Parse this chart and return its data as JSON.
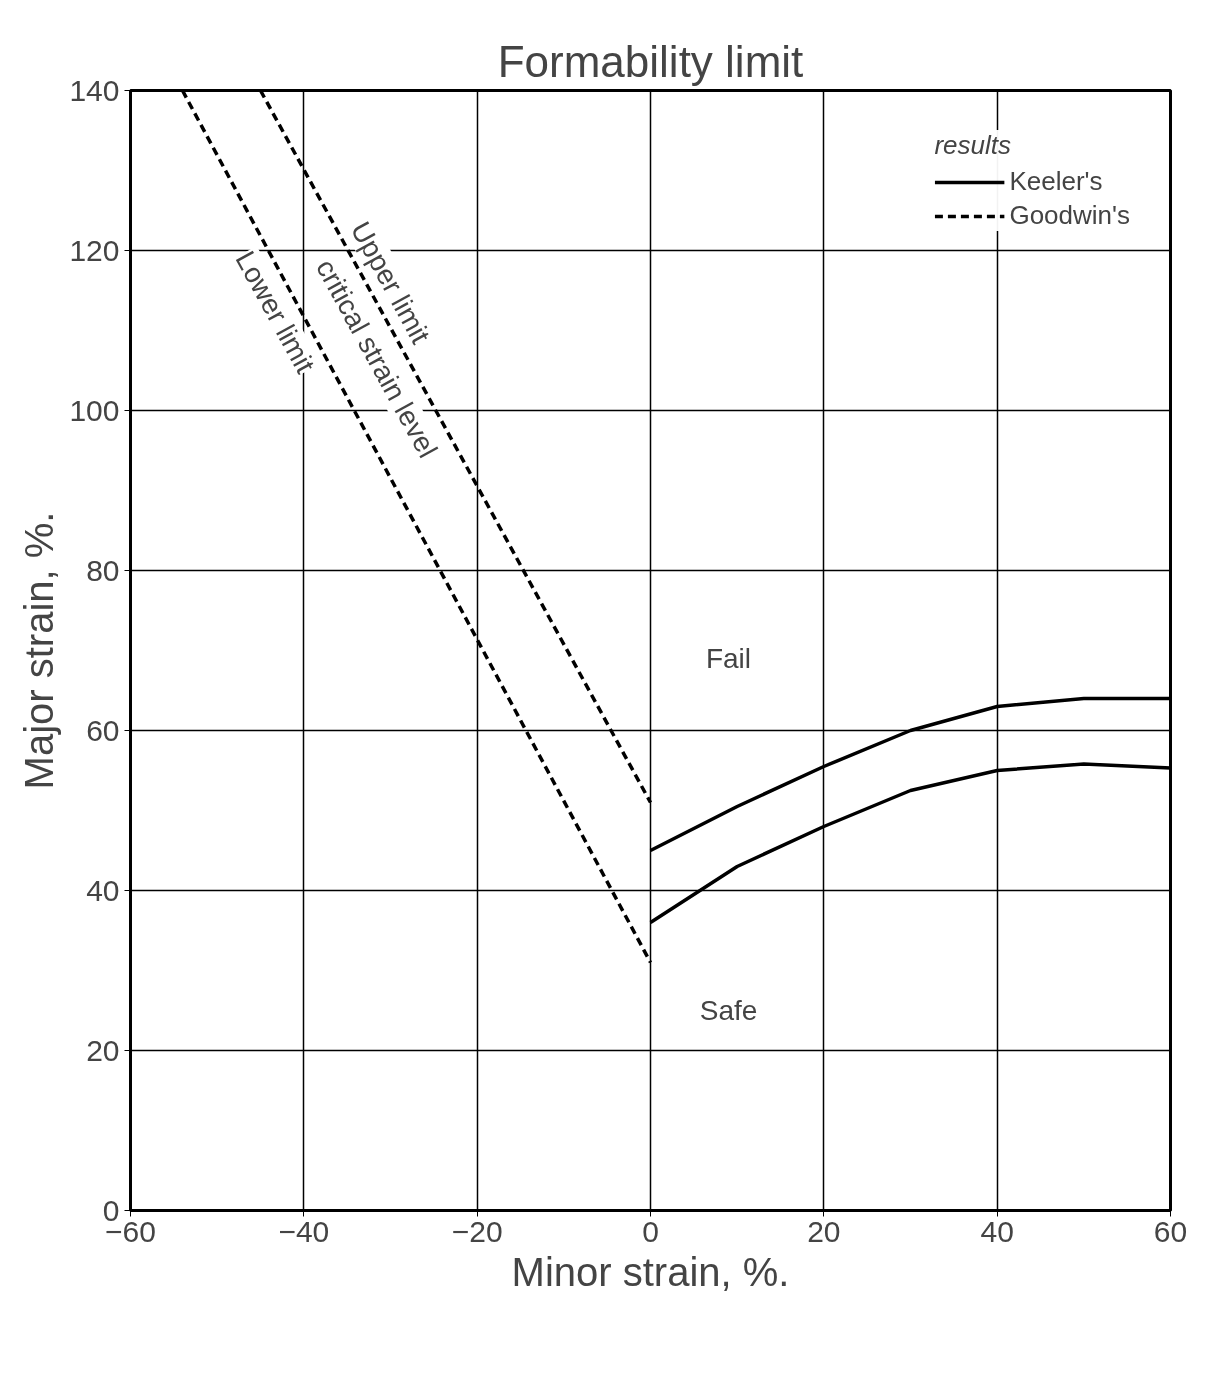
{
  "chart_data": {
    "type": "line",
    "title": "Formability limit",
    "xlabel": "Minor strain, %.",
    "ylabel": "Major strain, %.",
    "xlim": [
      -60,
      60
    ],
    "ylim": [
      0,
      140
    ],
    "xticks": [
      -60,
      -40,
      -20,
      0,
      20,
      40,
      60
    ],
    "yticks": [
      0,
      20,
      40,
      60,
      80,
      100,
      120,
      140
    ],
    "grid": true,
    "legend": "top right",
    "legend_title": "results",
    "series": [
      {
        "name": "Keeler's",
        "color": "#000000",
        "line_style": "solid",
        "x": [
          0,
          10,
          20,
          30,
          40,
          50,
          60
        ],
        "values": [
          45,
          50.5,
          55.5,
          60,
          63,
          64,
          64
        ]
      },
      {
        "color": "#000000",
        "line_style": "solid",
        "x": [
          0,
          10,
          20,
          30,
          40,
          50,
          60
        ],
        "values": [
          36,
          43,
          48,
          52.5,
          55,
          55.8,
          55.3
        ]
      },
      {
        "name": "Goodwin's",
        "color": "#000000",
        "line_style": "dashed",
        "x": [
          -45,
          0
        ],
        "values": [
          140,
          51
        ]
      },
      {
        "color": "#000000",
        "line_style": "dashed",
        "x": [
          -54,
          0
        ],
        "values": [
          140,
          31
        ]
      }
    ],
    "annotations": [
      "Upper limit",
      "critical strain level",
      "Lower limit",
      "Fail",
      "Safe"
    ]
  }
}
